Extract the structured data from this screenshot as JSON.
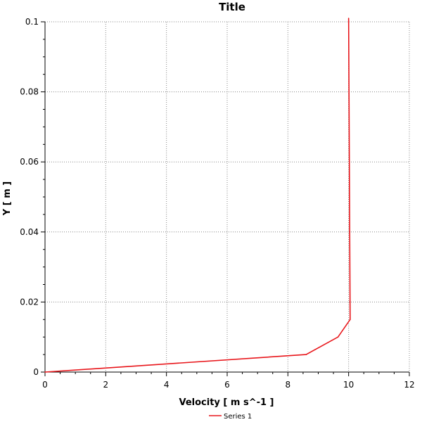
{
  "chart_data": {
    "type": "line",
    "title": "Title",
    "xlabel": "Velocity [ m s^-1 ]",
    "ylabel": "Y [ m ]",
    "xlim": [
      0,
      12
    ],
    "ylim": [
      0,
      0.1
    ],
    "x_ticks": [
      "0",
      "2",
      "4",
      "6",
      "8",
      "10",
      "12"
    ],
    "y_ticks": [
      "0",
      "0.02",
      "0.04",
      "0.06",
      "0.08",
      "0.1"
    ],
    "x_tick_values": [
      0,
      2,
      4,
      6,
      8,
      10,
      12
    ],
    "y_tick_values": [
      0,
      0.02,
      0.04,
      0.06,
      0.08,
      0.1
    ],
    "grid": true,
    "legend": "bottom-center",
    "series": [
      {
        "name": "Series 1",
        "color": "#e8161b",
        "points": [
          {
            "x": 0,
            "y": 0
          },
          {
            "x": 8.6,
            "y": 0.005
          },
          {
            "x": 9.65,
            "y": 0.01
          },
          {
            "x": 10.05,
            "y": 0.015
          },
          {
            "x": 10.0,
            "y": 0.101
          }
        ]
      }
    ]
  }
}
